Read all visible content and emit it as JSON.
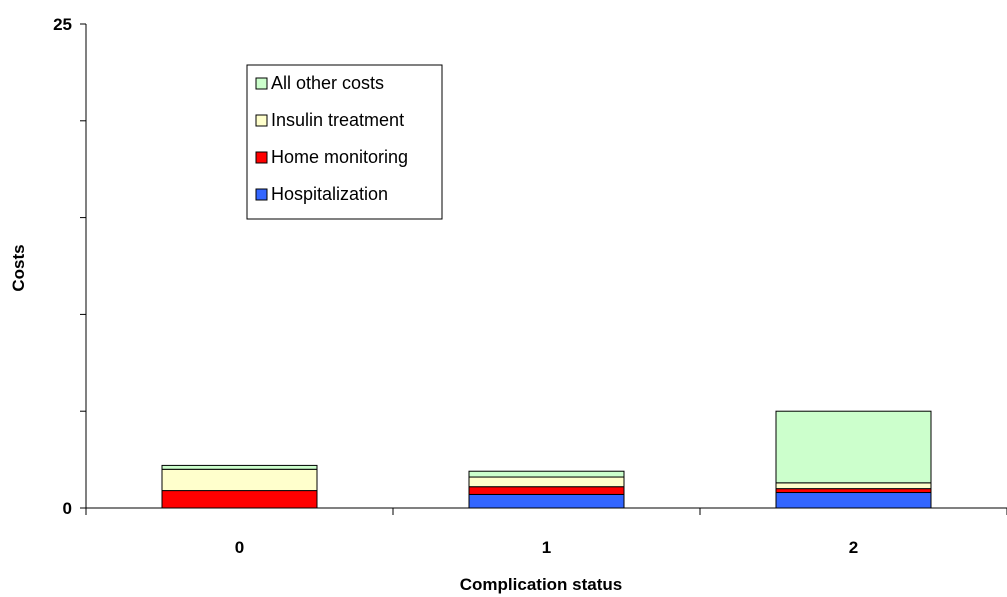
{
  "chart_data": {
    "type": "bar",
    "stacked": true,
    "categories": [
      "0",
      "1",
      "2"
    ],
    "series": [
      {
        "name": "Hospitalization",
        "color": "#3366ff",
        "values": [
          0.0,
          0.7,
          0.8
        ]
      },
      {
        "name": "Home monitoring",
        "color": "#ff0000",
        "values": [
          0.9,
          0.4,
          0.2
        ]
      },
      {
        "name": "Insulin treatment",
        "color": "#ffffcc",
        "values": [
          1.1,
          0.5,
          0.3
        ]
      },
      {
        "name": "All other costs",
        "color": "#ccffcc",
        "values": [
          0.2,
          0.3,
          3.7
        ]
      }
    ],
    "xlabel": "Complication status",
    "ylabel": "Costs",
    "ylim": [
      0,
      25
    ],
    "yticks_labeled": [
      0,
      25
    ],
    "ytick_step": 5,
    "grid": false,
    "legend_position": "top-left inside plot"
  }
}
